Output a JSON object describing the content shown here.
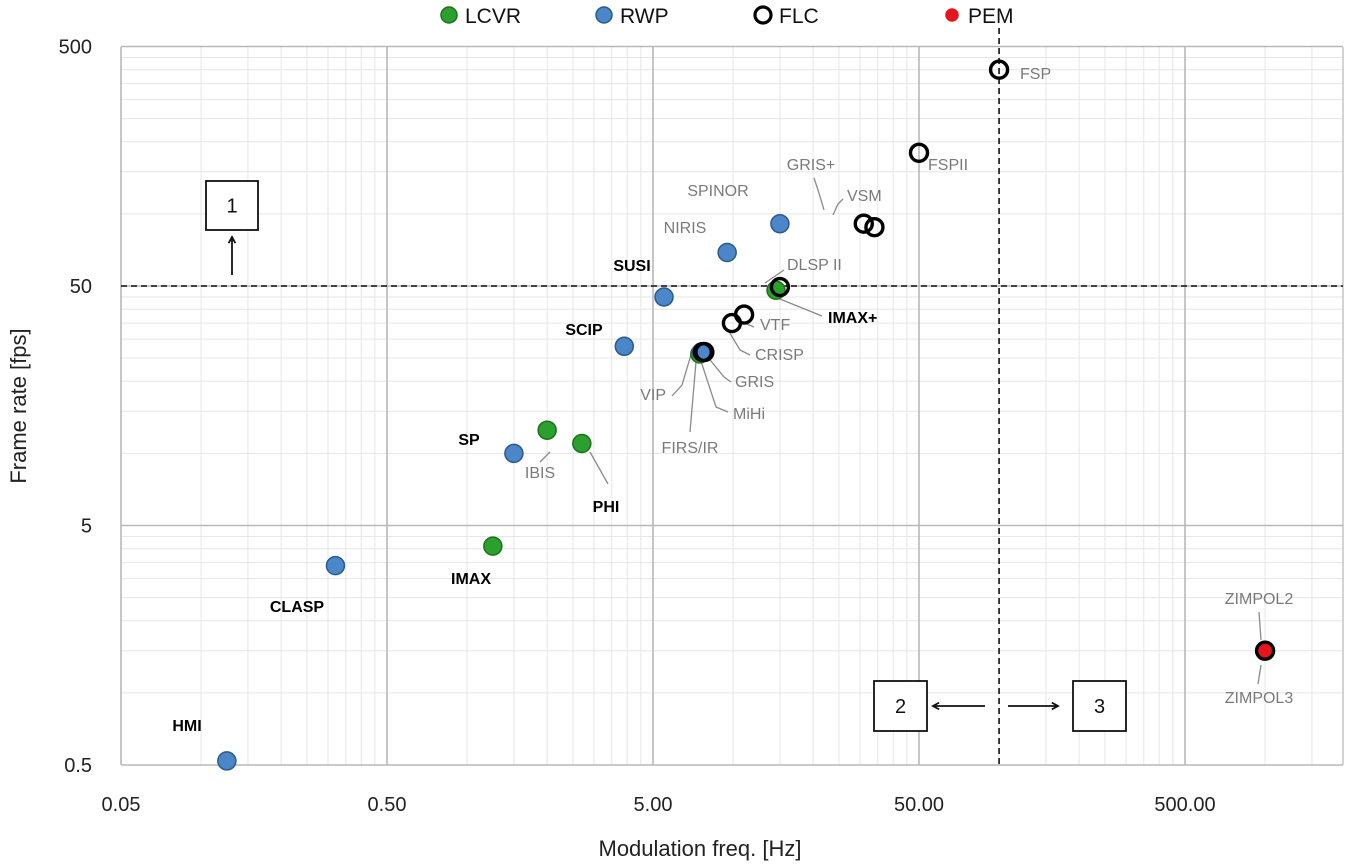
{
  "chart_data": {
    "type": "scatter",
    "scale": "log-log",
    "xlabel": "Modulation freq. [Hz]",
    "ylabel": "Frame rate [fps]",
    "xlim": [
      0.05,
      1500
    ],
    "ylim": [
      0.5,
      500
    ],
    "x_ticks": [
      0.05,
      0.5,
      5,
      50,
      500
    ],
    "x_tick_labels": [
      "0.05",
      "0.50",
      "5.00",
      "50.00",
      "500.00"
    ],
    "y_ticks": [
      0.5,
      5,
      50,
      500
    ],
    "y_tick_labels": [
      "0.5",
      "5",
      "50",
      "500"
    ],
    "legend": [
      {
        "key": "LCVR",
        "label": "LCVR",
        "fill": "#2ca02c",
        "stroke": "#1f6f1f",
        "hollow": false
      },
      {
        "key": "RWP",
        "label": "RWP",
        "fill": "#4a86c8",
        "stroke": "#2c5a8c",
        "hollow": false
      },
      {
        "key": "FLC",
        "label": "FLC",
        "fill": "#ffffff",
        "stroke": "#000000",
        "hollow": true
      },
      {
        "key": "PEM",
        "label": "PEM",
        "fill": "#e8141b",
        "stroke": "#e8141b",
        "hollow": false
      }
    ],
    "points": [
      {
        "name": "HMI",
        "type": "RWP",
        "x": 0.125,
        "y": 0.52
      },
      {
        "name": "CLASP",
        "type": "RWP",
        "x": 0.32,
        "y": 3.4
      },
      {
        "name": "IMAX",
        "type": "LCVR",
        "x": 1.25,
        "y": 4.1
      },
      {
        "name": "SP",
        "type": "RWP",
        "x": 1.5,
        "y": 10
      },
      {
        "name": "IBIS",
        "type": "LCVR",
        "x": 2.0,
        "y": 12.5
      },
      {
        "name": "PHI",
        "type": "LCVR",
        "x": 2.7,
        "y": 11
      },
      {
        "name": "SCIP",
        "type": "RWP",
        "x": 3.9,
        "y": 28
      },
      {
        "name": "SUSI",
        "type": "RWP",
        "x": 5.5,
        "y": 45
      },
      {
        "name": "VIP",
        "type": "LCVR",
        "x": 7.5,
        "y": 26
      },
      {
        "name": "FIRS/IR",
        "type": "RWP",
        "x": 7.6,
        "y": 26.5
      },
      {
        "name": "GRIS",
        "type": "FLC",
        "x": 7.8,
        "y": 26.5
      },
      {
        "name": "MiHi",
        "type": "FLC",
        "x": 7.7,
        "y": 26.5
      },
      {
        "name": "NIRIS",
        "type": "RWP",
        "x": 9.5,
        "y": 69
      },
      {
        "name": "CRISP",
        "type": "FLC",
        "x": 9.9,
        "y": 35
      },
      {
        "name": "VTF",
        "type": "FLC",
        "x": 11,
        "y": 38
      },
      {
        "name": "SPINOR",
        "type": "RWP",
        "x": 15,
        "y": 91
      },
      {
        "name": "IMAX+",
        "type": "LCVR",
        "x": 14.5,
        "y": 48
      },
      {
        "name": "DLSP II",
        "type": "FLC",
        "x": 15,
        "y": 49.5
      },
      {
        "name": "GRIS+",
        "type": "FLC",
        "x": 31,
        "y": 91
      },
      {
        "name": "VSM",
        "type": "FLC",
        "x": 34,
        "y": 88
      },
      {
        "name": "FSPII",
        "type": "FLC",
        "x": 50,
        "y": 180
      },
      {
        "name": "FSP",
        "type": "FLC",
        "x": 100,
        "y": 400
      },
      {
        "name": "ZIMPOL2",
        "type": "FLC",
        "x": 1000,
        "y": 1.5
      },
      {
        "name": "ZIMPOL3",
        "type": "PEM",
        "x": 1000,
        "y": 1.5
      }
    ],
    "reference_lines": [
      {
        "orientation": "horizontal",
        "value": 50,
        "style": "dashed"
      },
      {
        "orientation": "vertical",
        "value": 100,
        "style": "dashed"
      }
    ],
    "annotations": [
      {
        "id": "1",
        "text": "1",
        "arrow": "up"
      },
      {
        "id": "2",
        "text": "2",
        "arrow": "left"
      },
      {
        "id": "3",
        "text": "3",
        "arrow": "right"
      }
    ]
  }
}
